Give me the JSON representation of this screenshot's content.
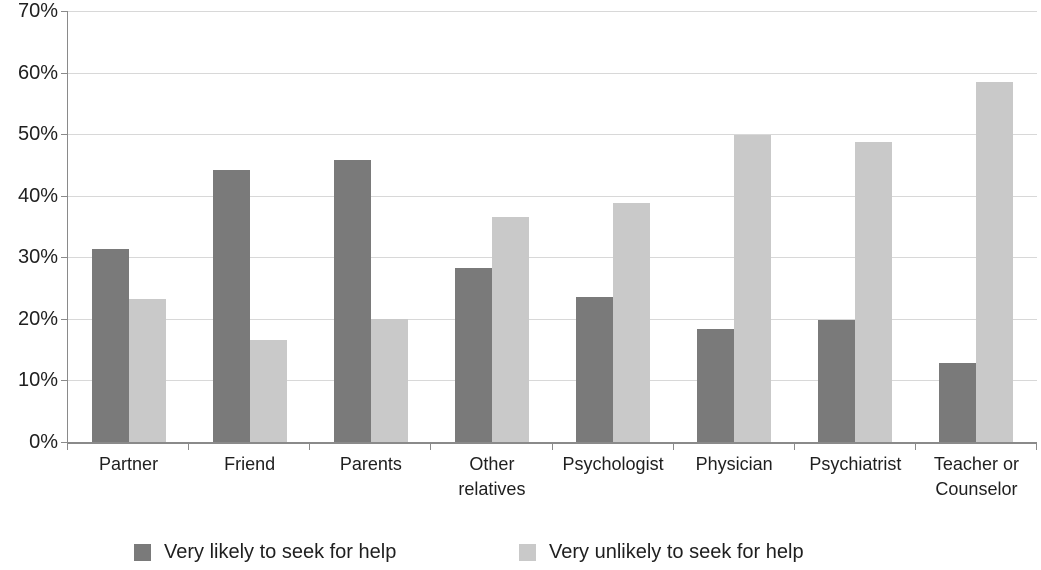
{
  "chart_data": {
    "type": "bar",
    "title": "",
    "categories": [
      "Partner",
      "Friend",
      "Parents",
      "Other relatives",
      "Psychologist",
      "Physician",
      "Psychiatrist",
      "Teacher or Counselor"
    ],
    "series": [
      {
        "name": "Very likely to seek for help",
        "color": "#7a7a7a",
        "values": [
          31.3,
          44.2,
          45.8,
          28.3,
          23.5,
          18.4,
          19.9,
          12.9
        ]
      },
      {
        "name": "Very unlikely to seek for help",
        "color": "#c9c9c9",
        "values": [
          23.3,
          16.6,
          20.0,
          36.5,
          38.9,
          49.9,
          48.8,
          58.4
        ]
      }
    ],
    "y_axis": {
      "min": 0,
      "max": 70,
      "step": 10,
      "tick_labels": [
        "0%",
        "10%",
        "20%",
        "30%",
        "40%",
        "50%",
        "60%",
        "70%"
      ],
      "unit": "percent"
    },
    "grid": true,
    "legend_position": "bottom"
  },
  "colors": {
    "background": "#ffffff",
    "gridline": "#d8d8d8",
    "axis": "#8a8a8a",
    "text": "#1f1f1f"
  }
}
